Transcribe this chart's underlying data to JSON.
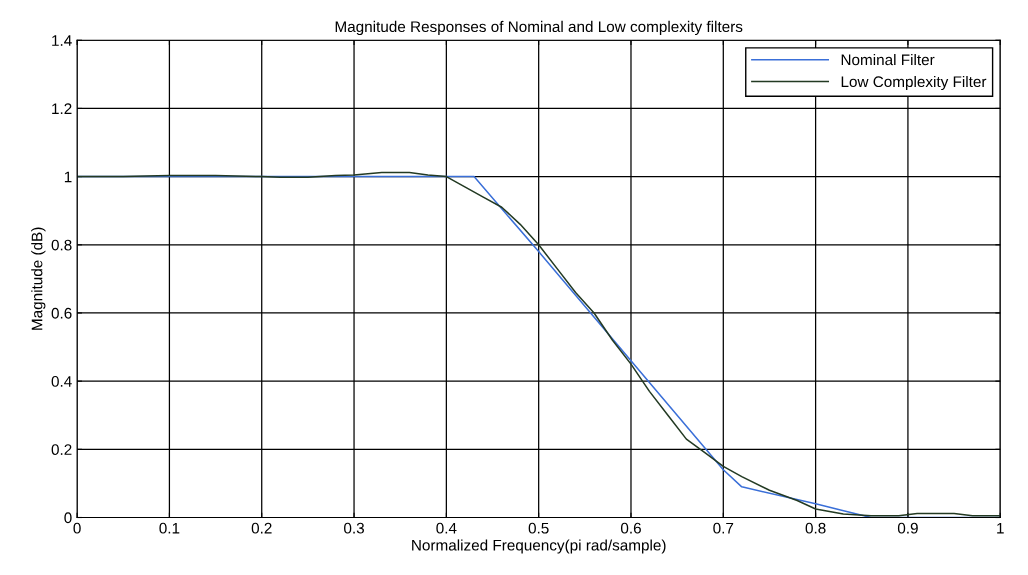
{
  "chart_data": {
    "type": "line",
    "title": "Magnitude Responses of Nominal and Low complexity filters",
    "xlabel": "Normalized Frequency(pi rad/sample)",
    "ylabel": "Magnitude (dB)",
    "xlim": [
      0,
      1
    ],
    "ylim": [
      0,
      1.4
    ],
    "xticks": [
      0,
      0.1,
      0.2,
      0.3,
      0.4,
      0.5,
      0.6,
      0.7,
      0.8,
      0.9,
      1
    ],
    "yticks": [
      0,
      0.2,
      0.4,
      0.6,
      0.8,
      1,
      1.2,
      1.4
    ],
    "grid": true,
    "legend": "top right",
    "line_style": "solid",
    "marker": "none",
    "series": [
      {
        "name": "Nominal Filter",
        "color": "#3a6fd8",
        "x": [
          0,
          0.43,
          0.5,
          0.6,
          0.7,
          0.72,
          0.8,
          0.86,
          1
        ],
        "values": [
          1,
          1,
          0.78,
          0.46,
          0.14,
          0.09,
          0.04,
          0,
          0
        ]
      },
      {
        "name": "Low Complexity Filter",
        "color": "#233a23",
        "x": [
          0,
          0.05,
          0.1,
          0.15,
          0.2,
          0.22,
          0.25,
          0.28,
          0.3,
          0.33,
          0.36,
          0.38,
          0.4,
          0.42,
          0.44,
          0.46,
          0.48,
          0.5,
          0.52,
          0.54,
          0.56,
          0.58,
          0.6,
          0.62,
          0.64,
          0.66,
          0.68,
          0.7,
          0.72,
          0.75,
          0.78,
          0.8,
          0.83,
          0.86,
          0.89,
          0.91,
          0.95,
          0.97,
          1
        ],
        "values": [
          1,
          1,
          1.003,
          1.003,
          1,
          0.998,
          0.998,
          1.003,
          1.005,
          1.012,
          1.012,
          1.005,
          1,
          0.97,
          0.94,
          0.91,
          0.86,
          0.8,
          0.73,
          0.66,
          0.6,
          0.52,
          0.45,
          0.37,
          0.3,
          0.23,
          0.19,
          0.15,
          0.12,
          0.08,
          0.05,
          0.025,
          0.01,
          0.005,
          0.005,
          0.012,
          0.012,
          0.005,
          0.005
        ]
      }
    ]
  }
}
